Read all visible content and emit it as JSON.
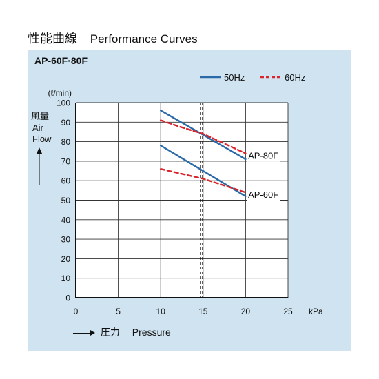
{
  "header": {
    "title_jp": "性能曲線",
    "title_en": "Performance Curves"
  },
  "chart_data": {
    "type": "line",
    "title": "AP-60F·80F",
    "x_unit": "kPa",
    "y_unit": "(ℓ/min)",
    "ylabel_jp": "風量",
    "ylabel_en_1": "Air",
    "ylabel_en_2": "Flow",
    "xlabel_jp": "圧力",
    "xlabel_en": "Pressure",
    "xlim": [
      0,
      25
    ],
    "ylim": [
      0,
      100
    ],
    "x_ticks": [
      0,
      5,
      10,
      15,
      20,
      25
    ],
    "y_ticks": [
      0,
      10,
      20,
      30,
      40,
      50,
      60,
      70,
      80,
      90,
      100
    ],
    "grid": true,
    "legend": [
      {
        "label": "50Hz",
        "color": "#2a6aa8",
        "style": "solid"
      },
      {
        "label": "60Hz",
        "color": "#d9252b",
        "style": "dashed"
      }
    ],
    "reference_line_x": 14.8,
    "series": [
      {
        "name": "AP-80F",
        "hz": "50Hz",
        "color": "#2a6aa8",
        "style": "solid",
        "x": [
          10,
          20
        ],
        "y": [
          96,
          71
        ]
      },
      {
        "name": "AP-80F",
        "hz": "60Hz",
        "color": "#d9252b",
        "style": "dashed",
        "x": [
          10,
          12,
          15,
          20
        ],
        "y": [
          91,
          88,
          84,
          74
        ]
      },
      {
        "name": "AP-60F",
        "hz": "50Hz",
        "color": "#2a6aa8",
        "style": "solid",
        "x": [
          10,
          20
        ],
        "y": [
          78,
          52
        ]
      },
      {
        "name": "AP-60F",
        "hz": "60Hz",
        "color": "#d9252b",
        "style": "dashed",
        "x": [
          10,
          15,
          20
        ],
        "y": [
          66,
          61,
          54
        ]
      }
    ],
    "curve_labels": [
      {
        "text": "AP-80F",
        "x": 20.3,
        "y": 73
      },
      {
        "text": "AP-60F",
        "x": 20.3,
        "y": 53
      }
    ]
  }
}
